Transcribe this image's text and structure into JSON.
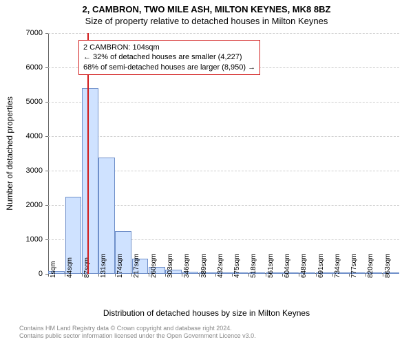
{
  "titles": {
    "line1": "2, CAMBRON, TWO MILE ASH, MILTON KEYNES, MK8 8BZ",
    "line2": "Size of property relative to detached houses in Milton Keynes"
  },
  "axes": {
    "ylabel": "Number of detached properties",
    "xlabel": "Distribution of detached houses by size in Milton Keynes"
  },
  "attribution": {
    "line1": "Contains HM Land Registry data © Crown copyright and database right 2024.",
    "line2": "Contains public sector information licensed under the Open Government Licence v3.0."
  },
  "chart": {
    "type": "histogram",
    "ylim": [
      0,
      7000
    ],
    "ytick_step": 1000,
    "yticks": [
      0,
      1000,
      2000,
      3000,
      4000,
      5000,
      6000,
      7000
    ],
    "grid_color": "#cccccc",
    "axis_color": "#666666",
    "background_color": "#ffffff",
    "bar_fill": "#cfe2ff",
    "bar_stroke": "#6f8fc9",
    "bar_width_ratio": 0.98,
    "n_bins": 21,
    "x_tick_labels": [
      "1sqm",
      "44sqm",
      "87sqm",
      "131sqm",
      "174sqm",
      "217sqm",
      "260sqm",
      "303sqm",
      "346sqm",
      "389sqm",
      "432sqm",
      "475sqm",
      "518sqm",
      "561sqm",
      "604sqm",
      "648sqm",
      "691sqm",
      "734sqm",
      "777sqm",
      "820sqm",
      "863sqm"
    ],
    "bin_edges_sqm": [
      1,
      44,
      87,
      131,
      174,
      217,
      260,
      303,
      346,
      389,
      432,
      475,
      518,
      561,
      604,
      648,
      691,
      734,
      777,
      820,
      863,
      906
    ],
    "values": [
      80,
      2250,
      5400,
      3380,
      1250,
      440,
      210,
      120,
      70,
      40,
      25,
      15,
      10,
      10,
      8,
      6,
      5,
      5,
      4,
      4,
      3
    ]
  },
  "marker": {
    "value_sqm": 104,
    "color": "#d11a1a"
  },
  "annotation": {
    "border_color": "#d11a1a",
    "background_color": "#ffffff",
    "lines": [
      "2 CAMBRON: 104sqm",
      "← 32% of detached houses are smaller (4,227)",
      "68% of semi-detached houses are larger (8,950) →"
    ],
    "fontsize": 11
  },
  "attribution_color": "#888888"
}
